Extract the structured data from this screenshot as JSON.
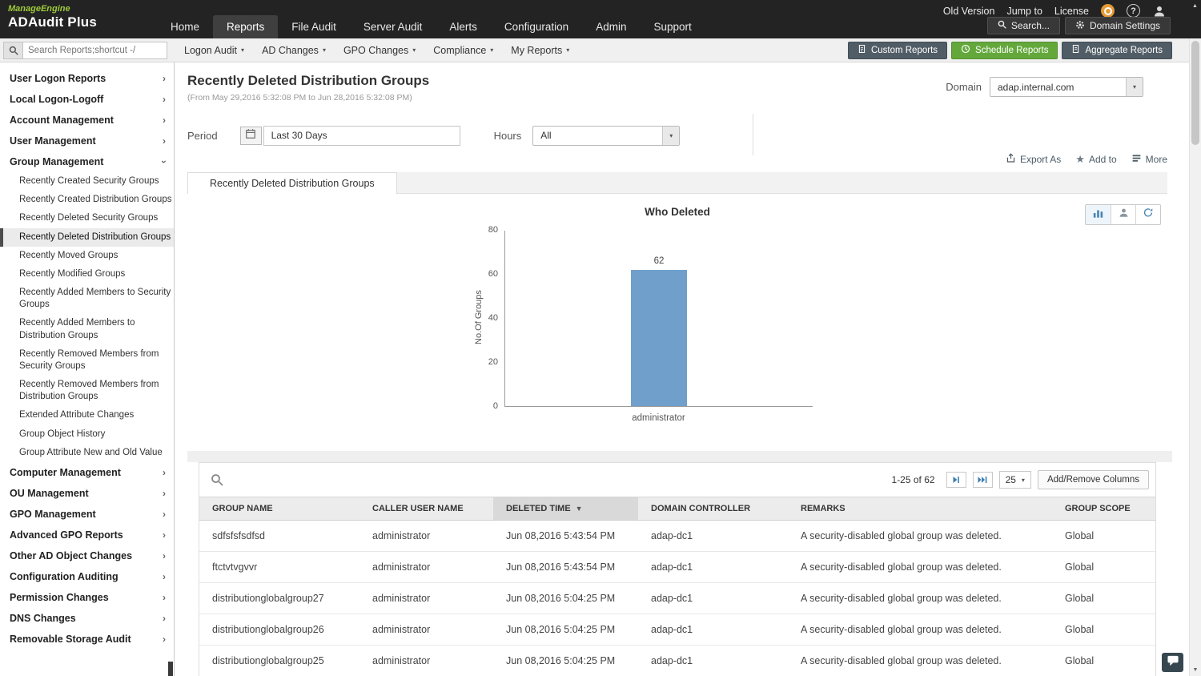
{
  "header": {
    "brand": "ManageEngine",
    "product": "ADAudit Plus",
    "nav": [
      {
        "label": "Home"
      },
      {
        "label": "Reports"
      },
      {
        "label": "File Audit"
      },
      {
        "label": "Server Audit"
      },
      {
        "label": "Alerts"
      },
      {
        "label": "Configuration"
      },
      {
        "label": "Admin"
      },
      {
        "label": "Support"
      }
    ],
    "utility": [
      {
        "label": "Old Version"
      },
      {
        "label": "Jump to"
      },
      {
        "label": "License"
      }
    ],
    "search_label": "Search...",
    "domain_settings_label": "Domain Settings"
  },
  "toolbar": {
    "search_placeholder": "Search Reports;shortcut -/",
    "menus": [
      {
        "label": "Logon Audit"
      },
      {
        "label": "AD Changes"
      },
      {
        "label": "GPO Changes"
      },
      {
        "label": "Compliance"
      },
      {
        "label": "My Reports"
      }
    ],
    "custom_reports_label": "Custom Reports",
    "schedule_reports_label": "Schedule Reports",
    "aggregate_reports_label": "Aggregate Reports"
  },
  "sidebar": {
    "items_top": [
      {
        "label": "User Logon Reports"
      },
      {
        "label": "Local Logon-Logoff"
      },
      {
        "label": "Account Management"
      },
      {
        "label": "User Management"
      },
      {
        "label": "Group Management"
      }
    ],
    "group_children": [
      {
        "label": "Recently Created Security Groups"
      },
      {
        "label": "Recently Created Distribution Groups"
      },
      {
        "label": "Recently Deleted Security Groups"
      },
      {
        "label": "Recently Deleted Distribution Groups"
      },
      {
        "label": "Recently Moved Groups"
      },
      {
        "label": "Recently Modified Groups"
      },
      {
        "label": "Recently Added Members to Security Groups"
      },
      {
        "label": "Recently Added Members to Distribution Groups"
      },
      {
        "label": "Recently Removed Members from Security Groups"
      },
      {
        "label": "Recently Removed Members from Distribution Groups"
      },
      {
        "label": "Extended Attribute Changes"
      },
      {
        "label": "Group Object History"
      },
      {
        "label": "Group Attribute New and Old Value"
      }
    ],
    "selected_child": "Recently Deleted Distribution Groups",
    "items_bottom": [
      {
        "label": "Computer Management"
      },
      {
        "label": "OU Management"
      },
      {
        "label": "GPO Management"
      },
      {
        "label": "Advanced GPO Reports"
      },
      {
        "label": "Other AD Object Changes"
      },
      {
        "label": "Configuration Auditing"
      },
      {
        "label": "Permission Changes"
      },
      {
        "label": "DNS Changes"
      },
      {
        "label": "Removable Storage Audit"
      }
    ]
  },
  "report": {
    "title": "Recently Deleted Distribution Groups",
    "date_range": "(From May 29,2016 5:32:08 PM to Jun 28,2016 5:32:08 PM)",
    "domain_label": "Domain",
    "domain_value": "adap.internal.com",
    "period_label": "Period",
    "period_value": "Last 30 Days",
    "hours_label": "Hours",
    "hours_value": "All",
    "export_label": "Export As",
    "addto_label": "Add to",
    "more_label": "More",
    "tab_label": "Recently Deleted Distribution Groups"
  },
  "chart_data": {
    "type": "bar",
    "title": "Who Deleted",
    "categories": [
      "administrator"
    ],
    "values": [
      62
    ],
    "ylabel": "No.Of Groups",
    "xlabel": "",
    "ylim": [
      0,
      80
    ],
    "yticks": [
      80,
      60,
      40,
      20,
      0
    ],
    "bar_color": "#6f9fca",
    "legend": "none",
    "grid": false
  },
  "table": {
    "pagination": "1-25 of 62",
    "page_size": "25",
    "add_remove_columns": "Add/Remove Columns",
    "columns": [
      "GROUP NAME",
      "CALLER USER NAME",
      "DELETED TIME",
      "DOMAIN CONTROLLER",
      "REMARKS",
      "GROUP SCOPE"
    ],
    "sorted_column": "DELETED TIME",
    "sort_direction": "desc",
    "rows": [
      [
        "sdfsfsfsdfsd",
        "administrator",
        "Jun 08,2016 5:43:54 PM",
        "adap-dc1",
        "A security-disabled global group was deleted.",
        "Global"
      ],
      [
        "ftctvtvgvvr",
        "administrator",
        "Jun 08,2016 5:43:54 PM",
        "adap-dc1",
        "A security-disabled global group was deleted.",
        "Global"
      ],
      [
        "distributionglobalgroup27",
        "administrator",
        "Jun 08,2016 5:04:25 PM",
        "adap-dc1",
        "A security-disabled global group was deleted.",
        "Global"
      ],
      [
        "distributionglobalgroup26",
        "administrator",
        "Jun 08,2016 5:04:25 PM",
        "adap-dc1",
        "A security-disabled global group was deleted.",
        "Global"
      ],
      [
        "distributionglobalgroup25",
        "administrator",
        "Jun 08,2016 5:04:25 PM",
        "adap-dc1",
        "A security-disabled global group was deleted.",
        "Global"
      ]
    ]
  },
  "icons": {
    "caret-down": "▾",
    "chevron-right": "›",
    "sort-desc": "▼",
    "star": "★",
    "scroll-up": "▲",
    "scroll-down": "▼"
  },
  "colors": {
    "header_bg": "#232323",
    "brand_green": "#9ecb3b",
    "button_green": "#64a83c",
    "button_slate": "#515d66",
    "bar_blue": "#6f9fca"
  }
}
